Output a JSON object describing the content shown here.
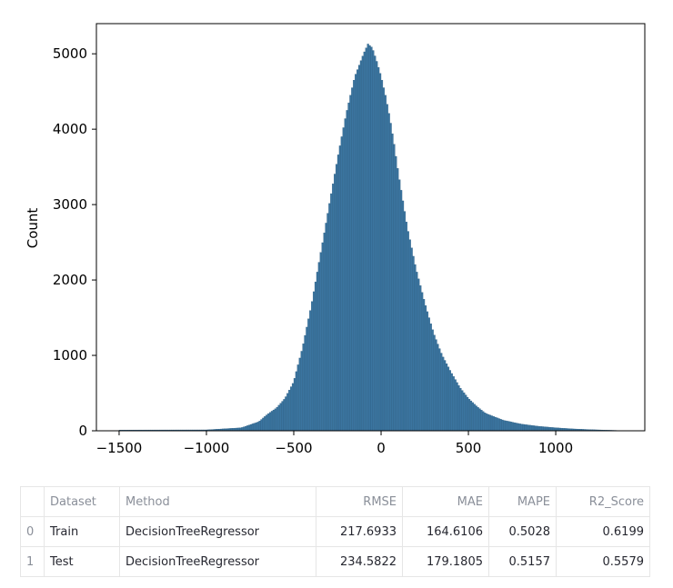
{
  "chart_data": {
    "type": "histogram",
    "ylabel": "Count",
    "xlabel": "",
    "xlim": [
      -1630,
      1510
    ],
    "ylim": [
      0,
      5400
    ],
    "x_ticks": [
      -1500,
      -1000,
      -500,
      0,
      500,
      1000
    ],
    "x_tick_labels": [
      "−1500",
      "−1000",
      "−500",
      "0",
      "500",
      "1000"
    ],
    "y_ticks": [
      0,
      1000,
      2000,
      3000,
      4000,
      5000
    ],
    "y_tick_labels": [
      "0",
      "1000",
      "2000",
      "3000",
      "4000",
      "5000"
    ],
    "bin_width": 10,
    "bar_color": "#3b75a0",
    "bins": [
      [
        -1500,
        10
      ],
      [
        -1000,
        12
      ],
      [
        -800,
        40
      ],
      [
        -700,
        120
      ],
      [
        -650,
        220
      ],
      [
        -600,
        300
      ],
      [
        -550,
        430
      ],
      [
        -500,
        650
      ],
      [
        -450,
        1100
      ],
      [
        -400,
        1650
      ],
      [
        -350,
        2300
      ],
      [
        -300,
        2950
      ],
      [
        -250,
        3600
      ],
      [
        -200,
        4200
      ],
      [
        -150,
        4700
      ],
      [
        -100,
        5000
      ],
      [
        -75,
        5130
      ],
      [
        -50,
        5080
      ],
      [
        -25,
        4900
      ],
      [
        0,
        4700
      ],
      [
        25,
        4450
      ],
      [
        50,
        4150
      ],
      [
        75,
        3800
      ],
      [
        100,
        3400
      ],
      [
        150,
        2700
      ],
      [
        200,
        2150
      ],
      [
        250,
        1700
      ],
      [
        300,
        1300
      ],
      [
        350,
        1000
      ],
      [
        400,
        780
      ],
      [
        450,
        580
      ],
      [
        500,
        430
      ],
      [
        550,
        320
      ],
      [
        600,
        230
      ],
      [
        700,
        140
      ],
      [
        800,
        90
      ],
      [
        900,
        60
      ],
      [
        1000,
        40
      ],
      [
        1100,
        25
      ],
      [
        1200,
        15
      ],
      [
        1300,
        8
      ],
      [
        1350,
        5
      ]
    ],
    "grid": false,
    "legend": "none"
  },
  "table": {
    "columns": [
      "",
      "Dataset",
      "Method",
      "RMSE",
      "MAE",
      "MAPE",
      "R2_Score"
    ],
    "rows": [
      [
        "0",
        "Train",
        "DecisionTreeRegressor",
        "217.6933",
        "164.6106",
        "0.5028",
        "0.6199"
      ],
      [
        "1",
        "Test",
        "DecisionTreeRegressor",
        "234.5822",
        "179.1805",
        "0.5157",
        "0.5579"
      ]
    ]
  }
}
